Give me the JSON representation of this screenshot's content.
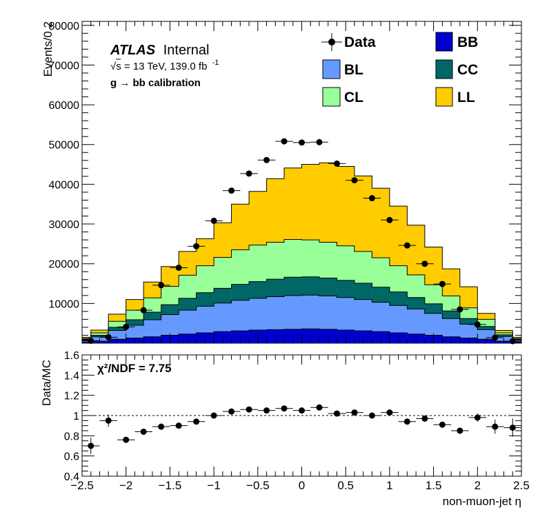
{
  "chart_data": [
    {
      "type": "bar",
      "stacked": true,
      "ylabel": "Events/0.2",
      "ylim": [
        0,
        81000
      ],
      "xlim": [
        -2.5,
        2.5
      ],
      "atlas_label": "ATLAS",
      "atlas_suffix": "Internal",
      "energy_label": "√s = 13 TeV, 139.0 fb",
      "energy_sup": "-1",
      "selection_label": "g  → bb calibration",
      "bin_edges": [
        -2.6,
        -2.4,
        -2.2,
        -2.0,
        -1.8,
        -1.6,
        -1.4,
        -1.2,
        -1.0,
        -0.8,
        -0.6,
        -0.4,
        -0.2,
        0.0,
        0.2,
        0.4,
        0.6,
        0.8,
        1.0,
        1.2,
        1.4,
        1.6,
        1.8,
        2.0,
        2.2,
        2.4,
        2.6
      ],
      "series": [
        {
          "name": "BB",
          "color": "#0000cc",
          "values": [
            300,
            500,
            1000,
            1300,
            1600,
            2000,
            2300,
            2600,
            2900,
            3100,
            3300,
            3400,
            3500,
            3600,
            3500,
            3300,
            3100,
            2900,
            2600,
            2300,
            2000,
            1600,
            1300,
            1000,
            500,
            300
          ]
        },
        {
          "name": "BL",
          "color": "#6699ff",
          "values": [
            500,
            1100,
            2200,
            3200,
            4300,
            5200,
            6000,
            6700,
            7200,
            7700,
            8000,
            8300,
            8500,
            8500,
            8400,
            8200,
            7900,
            7400,
            6900,
            6300,
            5500,
            4600,
            3500,
            2400,
            1200,
            500
          ]
        },
        {
          "name": "CC",
          "color": "#006666",
          "values": [
            200,
            400,
            800,
            1400,
            1900,
            2500,
            3000,
            3400,
            3700,
            4000,
            4200,
            4400,
            4600,
            4600,
            4500,
            4300,
            4100,
            3800,
            3400,
            2900,
            2400,
            1900,
            1400,
            800,
            400,
            200
          ]
        },
        {
          "name": "CL",
          "color": "#99ff99",
          "values": [
            200,
            600,
            1500,
            2400,
            3600,
            4600,
            5800,
            6800,
            7800,
            8700,
            9200,
            9300,
            9500,
            9300,
            9000,
            8700,
            8000,
            7400,
            6600,
            5700,
            4800,
            3800,
            2700,
            1800,
            500,
            200
          ]
        },
        {
          "name": "LL",
          "color": "#ffcc00",
          "values": [
            300,
            700,
            1800,
            2700,
            4000,
            5000,
            6000,
            6800,
            8700,
            11500,
            13500,
            16000,
            18000,
            19000,
            20000,
            20000,
            19000,
            17500,
            15000,
            12500,
            9500,
            6800,
            5300,
            1500,
            600,
            300
          ]
        }
      ],
      "data_points": [
        {
          "x": -2.4,
          "y": 600
        },
        {
          "x": -2.2,
          "y": 1500
        },
        {
          "x": -2.0,
          "y": 4100
        },
        {
          "x": -1.8,
          "y": 8300
        },
        {
          "x": -1.6,
          "y": 14600
        },
        {
          "x": -1.4,
          "y": 19000
        },
        {
          "x": -1.2,
          "y": 24400
        },
        {
          "x": -1.0,
          "y": 30800
        },
        {
          "x": -0.8,
          "y": 38400
        },
        {
          "x": -0.6,
          "y": 42700
        },
        {
          "x": -0.4,
          "y": 46100
        },
        {
          "x": -0.2,
          "y": 50800
        },
        {
          "x": 0.0,
          "y": 50500
        },
        {
          "x": 0.2,
          "y": 50600
        },
        {
          "x": 0.4,
          "y": 45200
        },
        {
          "x": 0.6,
          "y": 41000
        },
        {
          "x": 0.8,
          "y": 36500
        },
        {
          "x": 1.0,
          "y": 31000
        },
        {
          "x": 1.2,
          "y": 24600
        },
        {
          "x": 1.4,
          "y": 20000
        },
        {
          "x": 1.6,
          "y": 14900
        },
        {
          "x": 1.8,
          "y": 8500
        },
        {
          "x": 2.0,
          "y": 4700
        },
        {
          "x": 2.2,
          "y": 1400
        },
        {
          "x": 2.4,
          "y": 500
        }
      ],
      "yticks": [
        {
          "value": 10000,
          "label": "10000"
        },
        {
          "value": 20000,
          "label": "20000"
        },
        {
          "value": 30000,
          "label": "30000"
        },
        {
          "value": 40000,
          "label": "40000"
        },
        {
          "value": 50000,
          "label": "50000"
        },
        {
          "value": 60000,
          "label": "60000"
        },
        {
          "value": 70000,
          "label": "70000"
        },
        {
          "value": 80000,
          "label": "80000"
        }
      ],
      "legend": {
        "placement": "top-right",
        "entries": [
          "Data",
          "BB",
          "BL",
          "CC",
          "CL",
          "LL"
        ]
      }
    },
    {
      "type": "scatter",
      "ylabel": "Data/MC",
      "xlabel": "non-muon-jet η",
      "ylim": [
        0.4,
        1.6
      ],
      "xlim": [
        -2.5,
        2.5
      ],
      "reference_line": 1.0,
      "chi2_label": "χ²/NDF = 7.75",
      "ratio_points": [
        {
          "x": -2.4,
          "y": 0.7,
          "err": 0.08
        },
        {
          "x": -2.2,
          "y": 0.95,
          "err": 0.06
        },
        {
          "x": -2.0,
          "y": 0.76,
          "err": 0.03
        },
        {
          "x": -1.8,
          "y": 0.84,
          "err": 0.015
        },
        {
          "x": -1.6,
          "y": 0.89,
          "err": 0.01
        },
        {
          "x": -1.4,
          "y": 0.9,
          "err": 0.01
        },
        {
          "x": -1.2,
          "y": 0.94,
          "err": 0.01
        },
        {
          "x": -1.0,
          "y": 1.0,
          "err": 0.01
        },
        {
          "x": -0.8,
          "y": 1.04,
          "err": 0.01
        },
        {
          "x": -0.6,
          "y": 1.06,
          "err": 0.01
        },
        {
          "x": -0.4,
          "y": 1.05,
          "err": 0.01
        },
        {
          "x": -0.2,
          "y": 1.07,
          "err": 0.01
        },
        {
          "x": 0.0,
          "y": 1.05,
          "err": 0.01
        },
        {
          "x": 0.2,
          "y": 1.08,
          "err": 0.01
        },
        {
          "x": 0.4,
          "y": 1.02,
          "err": 0.01
        },
        {
          "x": 0.6,
          "y": 1.03,
          "err": 0.01
        },
        {
          "x": 0.8,
          "y": 1.0,
          "err": 0.01
        },
        {
          "x": 1.0,
          "y": 1.03,
          "err": 0.01
        },
        {
          "x": 1.2,
          "y": 0.94,
          "err": 0.01
        },
        {
          "x": 1.4,
          "y": 0.97,
          "err": 0.01
        },
        {
          "x": 1.6,
          "y": 0.91,
          "err": 0.01
        },
        {
          "x": 1.8,
          "y": 0.85,
          "err": 0.015
        },
        {
          "x": 2.0,
          "y": 0.98,
          "err": 0.04
        },
        {
          "x": 2.2,
          "y": 0.89,
          "err": 0.07
        },
        {
          "x": 2.4,
          "y": 0.88,
          "err": 0.09
        }
      ],
      "yticks": [
        {
          "value": 0.4,
          "label": "0.4"
        },
        {
          "value": 0.6,
          "label": "0.6"
        },
        {
          "value": 0.8,
          "label": "0.8"
        },
        {
          "value": 1.0,
          "label": "1"
        },
        {
          "value": 1.2,
          "label": "1.2"
        },
        {
          "value": 1.4,
          "label": "1.4"
        },
        {
          "value": 1.6,
          "label": "1.6"
        }
      ],
      "xticks": [
        {
          "value": -2.5,
          "label": "−2.5"
        },
        {
          "value": -2.0,
          "label": "−2"
        },
        {
          "value": -1.5,
          "label": "−1.5"
        },
        {
          "value": -1.0,
          "label": "−1"
        },
        {
          "value": -0.5,
          "label": "−0.5"
        },
        {
          "value": 0.0,
          "label": "0"
        },
        {
          "value": 0.5,
          "label": "0.5"
        },
        {
          "value": 1.0,
          "label": "1"
        },
        {
          "value": 1.5,
          "label": "1.5"
        },
        {
          "value": 2.0,
          "label": "2"
        },
        {
          "value": 2.5,
          "label": "2.5"
        }
      ]
    }
  ]
}
